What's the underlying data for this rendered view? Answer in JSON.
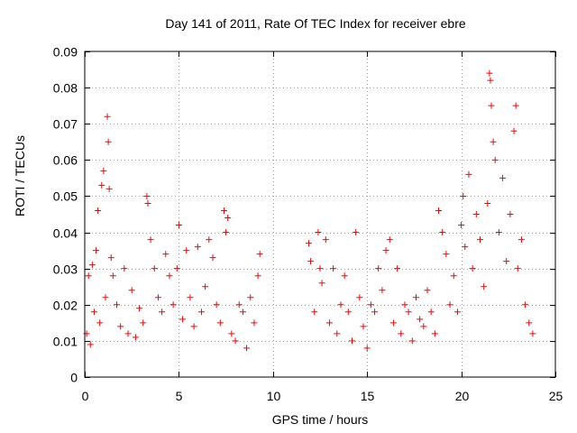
{
  "chart_data": {
    "type": "scatter",
    "title": "Day 141 of 2011, Rate Of TEC Index for receiver ebre",
    "xlabel": "GPS time / hours",
    "ylabel": "ROTI / TECUs",
    "xlim": [
      0,
      25
    ],
    "ylim": [
      0,
      0.09
    ],
    "x_ticks": [
      "0",
      "5",
      "10",
      "15",
      "20",
      "25"
    ],
    "y_ticks": [
      "0",
      "0.01",
      "0.02",
      "0.03",
      "0.04",
      "0.05",
      "0.06",
      "0.07",
      "0.08",
      "0.09"
    ],
    "grid": true,
    "marker": "+",
    "color": "#ff0000",
    "series": [
      {
        "points": [
          [
            0.1,
            0.012
          ],
          [
            0.2,
            0.028
          ],
          [
            0.3,
            0.009
          ],
          [
            0.4,
            0.031
          ],
          [
            0.5,
            0.018
          ],
          [
            0.6,
            0.035
          ],
          [
            0.7,
            0.046
          ],
          [
            0.8,
            0.015
          ],
          [
            0.9,
            0.053
          ],
          [
            1.0,
            0.057
          ],
          [
            1.1,
            0.022
          ],
          [
            1.2,
            0.072
          ],
          [
            1.25,
            0.065
          ],
          [
            1.3,
            0.052
          ],
          [
            1.4,
            0.033
          ],
          [
            1.5,
            0.028
          ],
          [
            1.7,
            0.02
          ],
          [
            1.9,
            0.014
          ],
          [
            2.1,
            0.03
          ],
          [
            2.3,
            0.012
          ],
          [
            2.5,
            0.024
          ],
          [
            2.7,
            0.011
          ],
          [
            2.9,
            0.019
          ],
          [
            3.1,
            0.015
          ],
          [
            3.3,
            0.05
          ],
          [
            3.35,
            0.048
          ],
          [
            3.5,
            0.038
          ],
          [
            3.7,
            0.03
          ],
          [
            3.9,
            0.022
          ],
          [
            4.1,
            0.018
          ],
          [
            4.3,
            0.034
          ],
          [
            4.5,
            0.028
          ],
          [
            4.7,
            0.02
          ],
          [
            4.9,
            0.03
          ],
          [
            5.0,
            0.042
          ],
          [
            5.2,
            0.016
          ],
          [
            5.4,
            0.035
          ],
          [
            5.6,
            0.022
          ],
          [
            5.8,
            0.014
          ],
          [
            6.0,
            0.036
          ],
          [
            6.2,
            0.018
          ],
          [
            6.4,
            0.025
          ],
          [
            6.6,
            0.038
          ],
          [
            6.8,
            0.033
          ],
          [
            7.0,
            0.02
          ],
          [
            7.2,
            0.015
          ],
          [
            7.4,
            0.046
          ],
          [
            7.5,
            0.04
          ],
          [
            7.6,
            0.044
          ],
          [
            7.8,
            0.012
          ],
          [
            8.0,
            0.01
          ],
          [
            8.2,
            0.02
          ],
          [
            8.4,
            0.018
          ],
          [
            8.6,
            0.008
          ],
          [
            8.8,
            0.022
          ],
          [
            9.0,
            0.015
          ],
          [
            9.2,
            0.028
          ],
          [
            9.3,
            0.034
          ],
          [
            11.9,
            0.037
          ],
          [
            12.0,
            0.032
          ],
          [
            12.2,
            0.018
          ],
          [
            12.4,
            0.04
          ],
          [
            12.5,
            0.03
          ],
          [
            12.6,
            0.026
          ],
          [
            12.8,
            0.038
          ],
          [
            13.0,
            0.015
          ],
          [
            13.2,
            0.03
          ],
          [
            13.4,
            0.012
          ],
          [
            13.6,
            0.02
          ],
          [
            13.8,
            0.028
          ],
          [
            14.0,
            0.018
          ],
          [
            14.2,
            0.01
          ],
          [
            14.4,
            0.04
          ],
          [
            14.6,
            0.022
          ],
          [
            14.8,
            0.014
          ],
          [
            15.0,
            0.008
          ],
          [
            15.2,
            0.02
          ],
          [
            15.4,
            0.018
          ],
          [
            15.6,
            0.03
          ],
          [
            15.8,
            0.024
          ],
          [
            16.0,
            0.035
          ],
          [
            16.2,
            0.038
          ],
          [
            16.4,
            0.015
          ],
          [
            16.6,
            0.03
          ],
          [
            16.8,
            0.012
          ],
          [
            17.0,
            0.02
          ],
          [
            17.2,
            0.018
          ],
          [
            17.4,
            0.01
          ],
          [
            17.6,
            0.022
          ],
          [
            17.8,
            0.016
          ],
          [
            18.0,
            0.014
          ],
          [
            18.2,
            0.024
          ],
          [
            18.4,
            0.018
          ],
          [
            18.6,
            0.012
          ],
          [
            18.8,
            0.046
          ],
          [
            19.0,
            0.04
          ],
          [
            19.2,
            0.034
          ],
          [
            19.4,
            0.02
          ],
          [
            19.6,
            0.028
          ],
          [
            19.8,
            0.018
          ],
          [
            20.0,
            0.042
          ],
          [
            20.1,
            0.05
          ],
          [
            20.2,
            0.036
          ],
          [
            20.4,
            0.056
          ],
          [
            20.6,
            0.03
          ],
          [
            20.8,
            0.045
          ],
          [
            21.0,
            0.038
          ],
          [
            21.2,
            0.025
          ],
          [
            21.4,
            0.048
          ],
          [
            21.5,
            0.084
          ],
          [
            21.55,
            0.082
          ],
          [
            21.6,
            0.075
          ],
          [
            21.7,
            0.065
          ],
          [
            21.8,
            0.06
          ],
          [
            22.0,
            0.04
          ],
          [
            22.2,
            0.055
          ],
          [
            22.4,
            0.032
          ],
          [
            22.6,
            0.045
          ],
          [
            22.8,
            0.068
          ],
          [
            22.9,
            0.075
          ],
          [
            23.0,
            0.03
          ],
          [
            23.2,
            0.038
          ],
          [
            23.4,
            0.02
          ],
          [
            23.6,
            0.015
          ],
          [
            23.8,
            0.012
          ]
        ]
      }
    ]
  }
}
